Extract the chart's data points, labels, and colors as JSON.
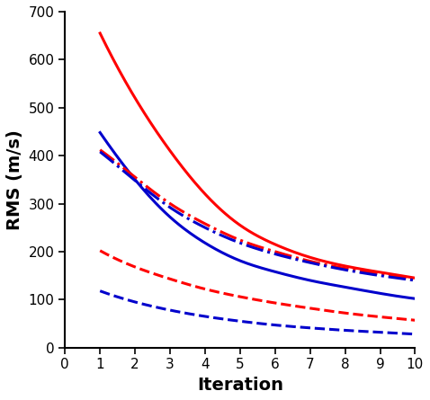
{
  "iterations": [
    1,
    2,
    3,
    4,
    5,
    6,
    7,
    8,
    9,
    10
  ],
  "red_solid": [
    655,
    520,
    410,
    320,
    255,
    215,
    188,
    170,
    157,
    145
  ],
  "blue_solid": [
    448,
    350,
    272,
    218,
    181,
    158,
    140,
    126,
    113,
    102
  ],
  "red_dashdot": [
    412,
    355,
    300,
    258,
    224,
    200,
    180,
    165,
    153,
    143
  ],
  "blue_dashdot": [
    408,
    348,
    292,
    250,
    218,
    195,
    177,
    162,
    150,
    140
  ],
  "red_dashed": [
    202,
    168,
    143,
    122,
    106,
    93,
    82,
    72,
    64,
    57
  ],
  "blue_dashed": [
    118,
    95,
    78,
    65,
    55,
    47,
    41,
    36,
    32,
    28
  ],
  "red_color": "#ff0000",
  "blue_color": "#0000cc",
  "xlabel": "Iteration",
  "ylabel": "RMS (m/s)",
  "ylim": [
    0,
    700
  ],
  "xlim": [
    0,
    10
  ],
  "xticks": [
    0,
    1,
    2,
    3,
    4,
    5,
    6,
    7,
    8,
    9,
    10
  ],
  "yticks": [
    0,
    100,
    200,
    300,
    400,
    500,
    600,
    700
  ],
  "linewidth": 2.2,
  "xlabel_fontsize": 14,
  "ylabel_fontsize": 14,
  "tick_fontsize": 11
}
